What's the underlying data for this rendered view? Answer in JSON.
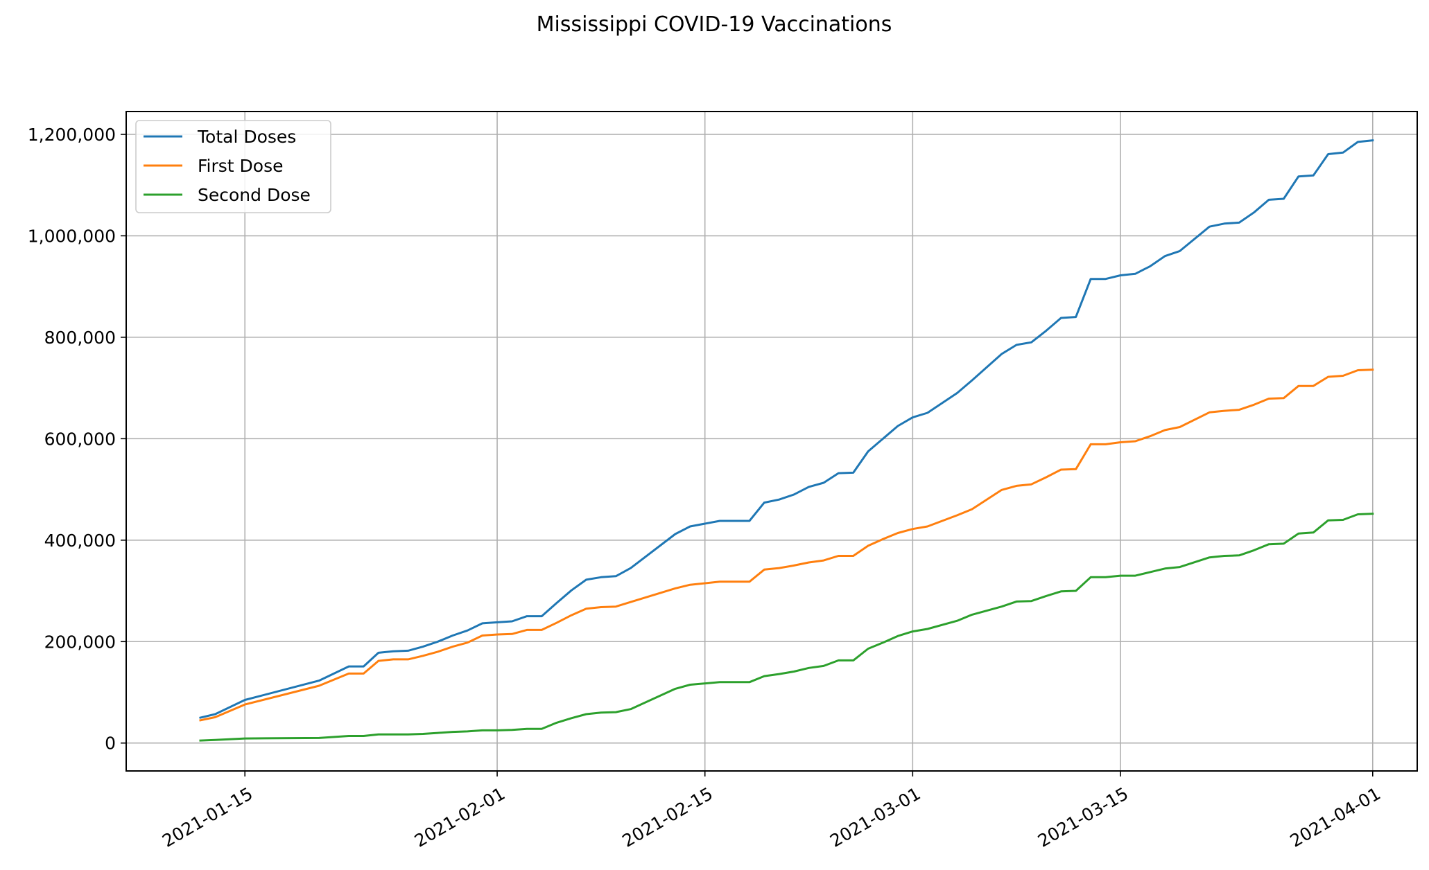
{
  "chart_data": {
    "type": "line",
    "title": "Mississippi COVID-19 Vaccinations",
    "xlabel": "",
    "ylabel": "",
    "x_axis": {
      "type": "date",
      "range": [
        "2021-01-07",
        "2021-04-04"
      ],
      "ticks": [
        "2021-01-15",
        "2021-02-01",
        "2021-02-15",
        "2021-03-01",
        "2021-03-15",
        "2021-04-01"
      ]
    },
    "y_axis": {
      "range": [
        -55000,
        1245000
      ],
      "ticks": [
        0,
        200000,
        400000,
        600000,
        800000,
        1000000,
        1200000
      ],
      "tick_labels": [
        "0",
        "200,000",
        "400,000",
        "600,000",
        "800,000",
        "1,000,000",
        "1,200,000"
      ]
    },
    "grid": true,
    "legend": {
      "position": "top-left"
    },
    "x": [
      "2021-01-12",
      "2021-01-13",
      "2021-01-15",
      "2021-01-20",
      "2021-01-22",
      "2021-01-23",
      "2021-01-24",
      "2021-01-25",
      "2021-01-26",
      "2021-01-27",
      "2021-01-28",
      "2021-01-29",
      "2021-01-30",
      "2021-01-31",
      "2021-02-01",
      "2021-02-02",
      "2021-02-03",
      "2021-02-04",
      "2021-02-05",
      "2021-02-06",
      "2021-02-07",
      "2021-02-08",
      "2021-02-09",
      "2021-02-10",
      "2021-02-13",
      "2021-02-14",
      "2021-02-16",
      "2021-02-17",
      "2021-02-18",
      "2021-02-19",
      "2021-02-20",
      "2021-02-21",
      "2021-02-22",
      "2021-02-23",
      "2021-02-24",
      "2021-02-25",
      "2021-02-26",
      "2021-02-27",
      "2021-02-28",
      "2021-03-01",
      "2021-03-02",
      "2021-03-04",
      "2021-03-05",
      "2021-03-07",
      "2021-03-08",
      "2021-03-09",
      "2021-03-10",
      "2021-03-11",
      "2021-03-12",
      "2021-03-13",
      "2021-03-14",
      "2021-03-15",
      "2021-03-16",
      "2021-03-17",
      "2021-03-18",
      "2021-03-19",
      "2021-03-21",
      "2021-03-22",
      "2021-03-23",
      "2021-03-24",
      "2021-03-25",
      "2021-03-26",
      "2021-03-27",
      "2021-03-28",
      "2021-03-29",
      "2021-03-30",
      "2021-03-31",
      "2021-04-01"
    ],
    "series": [
      {
        "name": "Total Doses",
        "color": "#1f77b4",
        "values": [
          50000,
          57000,
          85000,
          123000,
          151000,
          151000,
          178000,
          181000,
          182000,
          190000,
          200000,
          212000,
          222000,
          236000,
          238000,
          240000,
          250000,
          250000,
          276000,
          301000,
          322000,
          327000,
          329000,
          345000,
          412000,
          427000,
          438000,
          438000,
          438000,
          474000,
          480000,
          490000,
          505000,
          513000,
          532000,
          533000,
          575000,
          600000,
          625000,
          642000,
          651000,
          690000,
          715000,
          767000,
          785000,
          790000,
          813000,
          838000,
          840000,
          915000,
          915000,
          922000,
          925000,
          940000,
          960000,
          970000,
          1018000,
          1024000,
          1026000,
          1046000,
          1071000,
          1073000,
          1117000,
          1119000,
          1161000,
          1164000,
          1185000,
          1188000
        ]
      },
      {
        "name": "First Dose",
        "color": "#ff7f0e",
        "values": [
          45000,
          51000,
          76000,
          113000,
          137000,
          137000,
          162000,
          165000,
          165000,
          172000,
          180000,
          190000,
          198000,
          212000,
          214000,
          215000,
          223000,
          223000,
          237000,
          252000,
          265000,
          268000,
          269000,
          278000,
          305000,
          312000,
          318000,
          318000,
          318000,
          342000,
          345000,
          350000,
          356000,
          360000,
          369000,
          369000,
          389000,
          402000,
          414000,
          422000,
          427000,
          449000,
          461000,
          499000,
          507000,
          510000,
          524000,
          539000,
          540000,
          589000,
          589000,
          593000,
          595000,
          605000,
          617000,
          623000,
          652000,
          655000,
          657000,
          667000,
          679000,
          680000,
          704000,
          704000,
          722000,
          724000,
          735000,
          736000
        ]
      },
      {
        "name": "Second Dose",
        "color": "#2ca02c",
        "values": [
          5000,
          6000,
          9000,
          10000,
          14000,
          14000,
          17000,
          17000,
          17000,
          18000,
          20000,
          22000,
          23000,
          25000,
          25000,
          26000,
          28000,
          28000,
          40000,
          49000,
          57000,
          60000,
          61000,
          67000,
          107000,
          115000,
          120000,
          120000,
          120000,
          132000,
          136000,
          141000,
          148000,
          152000,
          163000,
          163000,
          186000,
          198000,
          211000,
          220000,
          225000,
          241000,
          253000,
          269000,
          279000,
          280000,
          290000,
          299000,
          300000,
          327000,
          327000,
          330000,
          330000,
          337000,
          344000,
          347000,
          366000,
          369000,
          370000,
          380000,
          392000,
          393000,
          413000,
          415000,
          439000,
          440000,
          451000,
          452000
        ]
      }
    ]
  }
}
